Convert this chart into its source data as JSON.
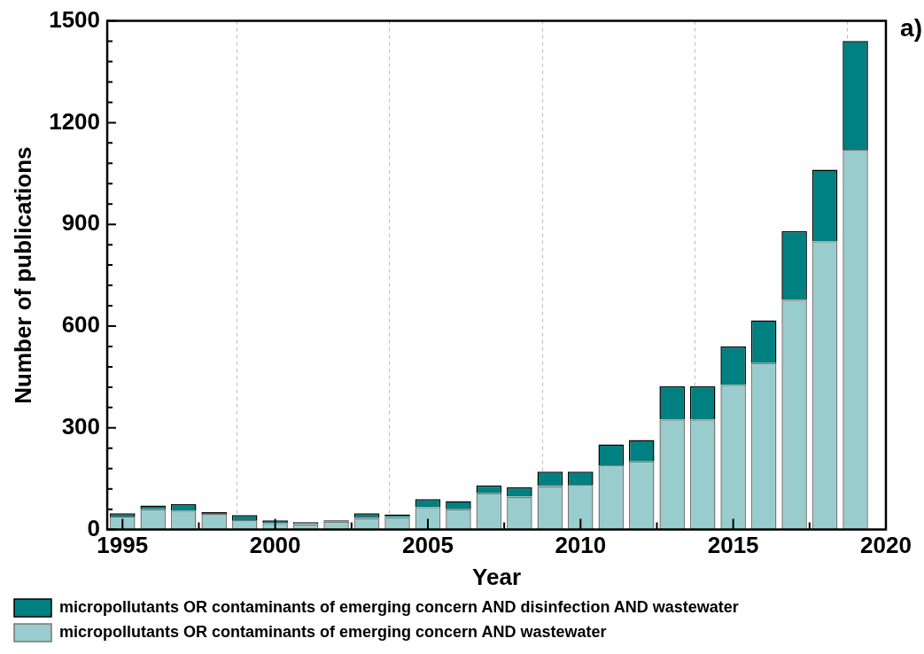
{
  "chart_data": {
    "type": "bar",
    "stacked": true,
    "xlabel": "Year",
    "ylabel": "Number of publications",
    "annotations": [
      "a)"
    ],
    "x": [
      1995,
      1996,
      1997,
      1998,
      1999,
      2000,
      2001,
      2002,
      2003,
      2004,
      2005,
      2006,
      2007,
      2008,
      2009,
      2010,
      2011,
      2012,
      2013,
      2014,
      2015,
      2016,
      2017,
      2018,
      2019
    ],
    "series": [
      {
        "name": "micropollutants OR contaminants of emerging concern AND wastewater",
        "color": "#99cccc",
        "values": [
          38,
          60,
          56,
          46,
          28,
          19,
          16,
          23,
          34,
          37,
          66,
          60,
          107,
          97,
          128,
          132,
          190,
          201,
          325,
          325,
          427,
          491,
          678,
          850,
          1120
        ]
      },
      {
        "name": "micropollutants OR contaminants of emerging concern AND disinfection AND wastewater",
        "color": "#008080",
        "values": [
          10,
          11,
          19,
          5,
          15,
          8,
          6,
          4,
          14,
          8,
          24,
          24,
          23,
          28,
          43,
          39,
          61,
          63,
          97,
          97,
          113,
          126,
          202,
          211,
          321
        ]
      }
    ],
    "xlim": [
      1994.5,
      2020
    ],
    "xticks": [
      1995,
      {
        "value": 1997.5,
        "label": null
      },
      2000,
      {
        "value": 2002.5,
        "label": null
      },
      2005,
      {
        "value": 2007.5,
        "label": null
      },
      2010,
      {
        "value": 2012.5,
        "label": null
      },
      2015,
      {
        "value": 2017.5,
        "label": null
      },
      2020
    ],
    "ylim": [
      0,
      1500
    ],
    "yticks": [
      0,
      {
        "value": 60,
        "label": null
      },
      {
        "value": 120,
        "label": null
      },
      {
        "value": 180,
        "label": null
      },
      {
        "value": 240,
        "label": null
      },
      300,
      {
        "value": 360,
        "label": null
      },
      {
        "value": 420,
        "label": null
      },
      {
        "value": 480,
        "label": null
      },
      {
        "value": 540,
        "label": null
      },
      600,
      {
        "value": 660,
        "label": null
      },
      {
        "value": 720,
        "label": null
      },
      {
        "value": 780,
        "label": null
      },
      {
        "value": 840,
        "label": null
      },
      900,
      {
        "value": 960,
        "label": null
      },
      {
        "value": 1020,
        "label": null
      },
      {
        "value": 1080,
        "label": null
      },
      {
        "value": 1140,
        "label": null
      },
      1200,
      {
        "value": 1260,
        "label": null
      },
      {
        "value": 1320,
        "label": null
      },
      {
        "value": 1380,
        "label": null
      },
      {
        "value": 1440,
        "label": null
      },
      1500
    ],
    "grid": "x",
    "legend": "bottom"
  }
}
